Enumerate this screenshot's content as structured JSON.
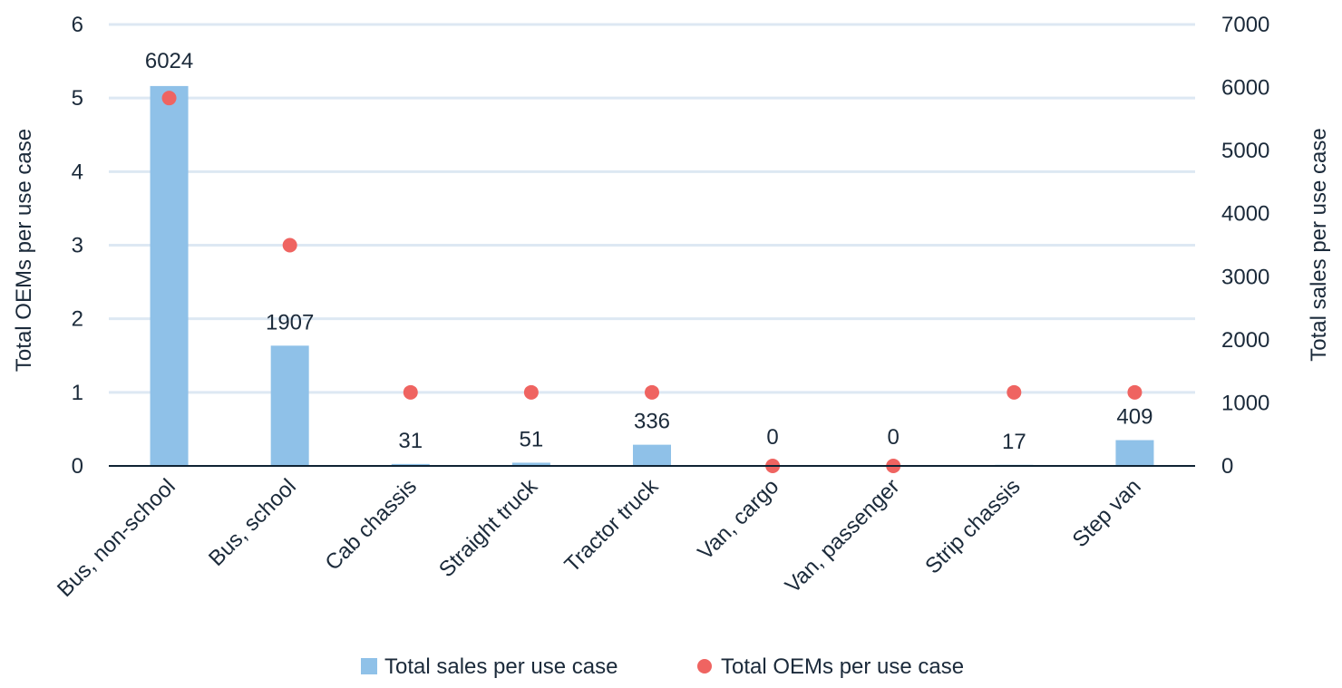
{
  "chart_data": {
    "type": "bar",
    "categories": [
      "Bus, non-school",
      "Bus, school",
      "Cab chassis",
      "Straight truck",
      "Tractor truck",
      "Van, cargo",
      "Van, passenger",
      "Strip chassis",
      "Step van"
    ],
    "series": [
      {
        "name": "Total sales per use case",
        "type": "bar",
        "axis": "right",
        "values": [
          6024,
          1907,
          31,
          51,
          336,
          0,
          0,
          17,
          409
        ],
        "color": "#8fc1e8"
      },
      {
        "name": "Total OEMs per use case",
        "type": "scatter",
        "axis": "left",
        "values": [
          5,
          3,
          1,
          1,
          1,
          0,
          0,
          1,
          1
        ],
        "color": "#ef6461"
      }
    ],
    "ylabel_left": "Total OEMs per use case",
    "ylabel_right": "Total sales per use case",
    "ylim_left": [
      0,
      6
    ],
    "ylim_right": [
      0,
      7000
    ],
    "yticks_left": [
      "0",
      "1",
      "2",
      "3",
      "4",
      "5",
      "6"
    ],
    "yticks_right": [
      "0",
      "1000",
      "2000",
      "3000",
      "4000",
      "5000",
      "6000",
      "7000"
    ],
    "data_labels": [
      "6024",
      "1907",
      "31",
      "51",
      "336",
      "0",
      "0",
      "17",
      "409"
    ],
    "grid": true,
    "legend_position": "bottom",
    "colors": {
      "bar": "#8fc1e8",
      "dot": "#ef6461",
      "grid": "#dde8f3",
      "axis": "#0f2333",
      "text": "#1b2a3a"
    }
  }
}
